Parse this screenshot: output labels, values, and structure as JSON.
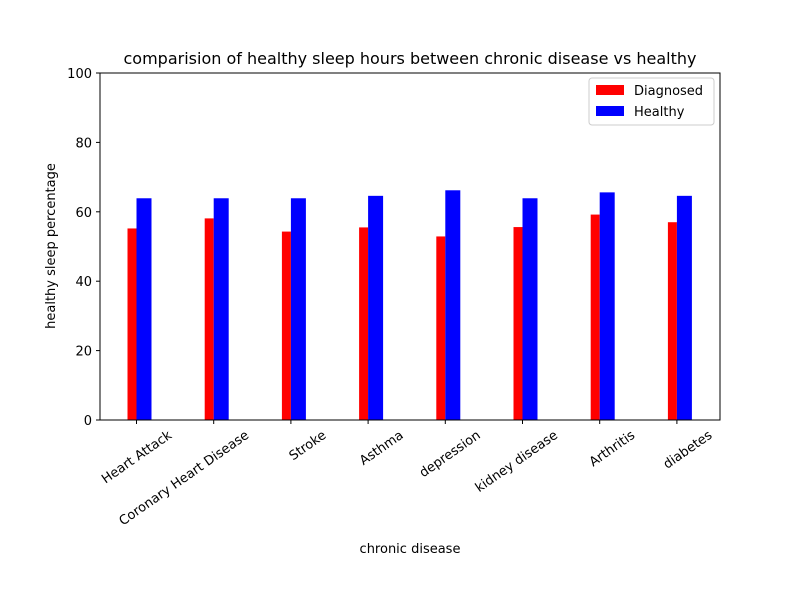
{
  "chart_data": {
    "type": "bar",
    "title": "comparision of healthy sleep hours between chronic disease vs healthy",
    "xlabel": "chronic disease",
    "ylabel": "healthy sleep percentage",
    "ylim": [
      0,
      100
    ],
    "yticks": [
      0,
      20,
      40,
      60,
      80,
      100
    ],
    "grid": false,
    "legend_position": "top-right",
    "categories": [
      "Heart Attack",
      "Coronary Heart Disease",
      "Stroke",
      "Asthma",
      "depression",
      "kidney disease",
      "Arthritis",
      "diabetes"
    ],
    "series": [
      {
        "name": "Diagnosed",
        "color": "#ff0000",
        "values": [
          55.2,
          58.1,
          54.3,
          55.5,
          52.9,
          55.6,
          59.2,
          57.0
        ]
      },
      {
        "name": "Healthy",
        "color": "#0000ff",
        "values": [
          63.9,
          63.9,
          63.9,
          64.6,
          66.2,
          63.9,
          65.6,
          64.6
        ]
      }
    ]
  }
}
